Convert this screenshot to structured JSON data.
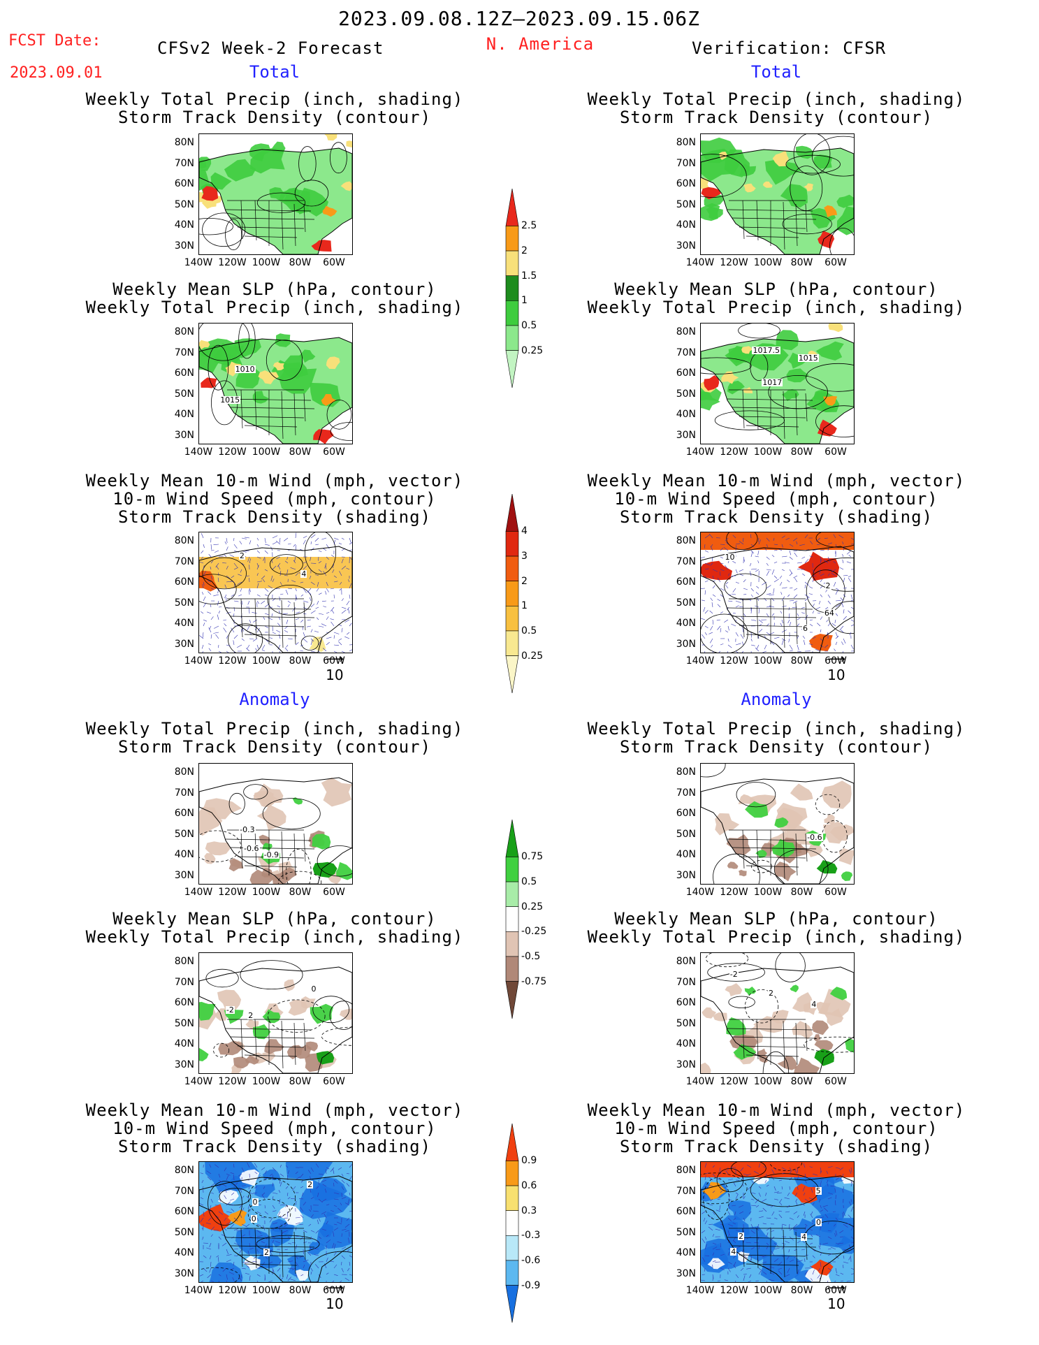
{
  "header": {
    "date_range": "2023.09.08.12Z–2023.09.15.06Z",
    "fcst_label": "FCST Date:",
    "fcst_date": "2023.09.01",
    "left_title": "CFSv2 Week-2 Forecast",
    "region": "N. America",
    "right_title": "Verification: CFSR"
  },
  "section_labels": {
    "total": "Total",
    "anomaly": "Anomaly"
  },
  "panel_titles": {
    "precip_storm": [
      "Weekly Total Precip (inch, shading)",
      "Storm Track Density (contour)"
    ],
    "slp_precip": [
      "Weekly Mean SLP (hPa, contour)",
      "Weekly Total Precip (inch, shading)"
    ],
    "wind_storm": [
      "Weekly Mean 10-m Wind (mph, vector)",
      "10-m Wind Speed (mph, contour)",
      "Storm Track Density (shading)"
    ]
  },
  "axes": {
    "lat_ticks": [
      "80N",
      "70N",
      "60N",
      "50N",
      "40N",
      "30N"
    ],
    "lon_ticks": [
      "140W",
      "120W",
      "100W",
      "80W",
      "60W"
    ]
  },
  "vector_ref": "10",
  "contour_labels": {
    "slp_fcst_total": [
      "1010",
      "1015"
    ],
    "slp_cfsr_total": [
      "1015",
      "1017",
      "1017.5"
    ],
    "wind_fcst_total": [
      "2",
      "4"
    ],
    "wind_cfsr_total": [
      "6",
      "10",
      "64",
      "2"
    ],
    "precip_fcst_anom": [
      "-0.6",
      "-0.9",
      "-0.3"
    ],
    "precip_cfsr_anom": [
      "-0.6"
    ],
    "slp_fcst_anom": [
      "2",
      "-2",
      "0"
    ],
    "slp_cfsr_anom": [
      "4",
      "2",
      "-2"
    ],
    "wind_fcst_anom": [
      "0",
      "2",
      "2",
      "0"
    ],
    "wind_cfsr_anom": [
      "5",
      "4",
      "4",
      "2",
      "0"
    ]
  },
  "colorbars": {
    "precip_total": {
      "labels": [
        "2.5",
        "2",
        "1.5",
        "1",
        "0.5",
        "0.25"
      ],
      "colors": [
        "#e8281c",
        "#f89a18",
        "#f8e07a",
        "#1e8c1e",
        "#3ecc3e",
        "#8ce88c",
        "#c2f4c2"
      ]
    },
    "storm_total": {
      "labels": [
        "4",
        "3",
        "2",
        "1",
        "0.5",
        "0.25"
      ],
      "colors": [
        "#a01010",
        "#e02810",
        "#f05c10",
        "#f89a18",
        "#f8c040",
        "#f8e890",
        "#fbf6c8"
      ]
    },
    "precip_anom": {
      "labels": [
        "0.75",
        "0.5",
        "0.25",
        "-0.25",
        "-0.5",
        "-0.75"
      ],
      "colors": [
        "#18a018",
        "#40d040",
        "#a8eca8",
        "#ffffff",
        "#e0c4b4",
        "#b08878",
        "#704838"
      ]
    },
    "storm_anom": {
      "labels": [
        "0.9",
        "0.6",
        "0.3",
        "-0.3",
        "-0.6",
        "-0.9"
      ],
      "colors": [
        "#f04010",
        "#f89a18",
        "#f8e070",
        "#ffffff",
        "#b8e8f8",
        "#5cb8f0",
        "#1870e0"
      ]
    }
  },
  "colors": {
    "title_red": "#ff2020",
    "label_blue": "#2020ff",
    "land_outline": "#000000"
  }
}
